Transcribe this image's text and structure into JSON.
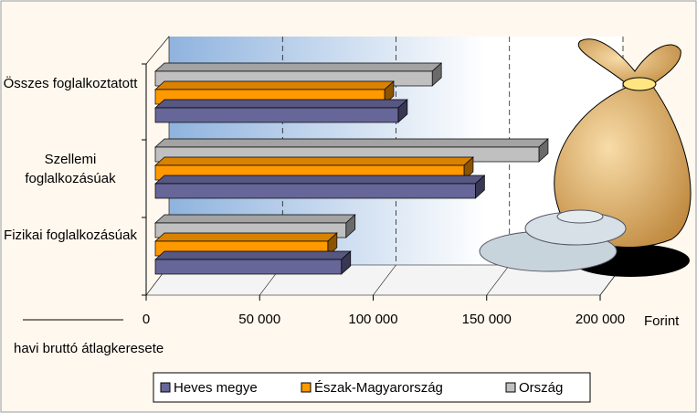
{
  "chart_data": {
    "type": "bar3d_horizontal",
    "categories": [
      "Összes foglalkoztatott",
      "Szellemi foglalkozásúak",
      "Fizikai foglalkozásúak"
    ],
    "series": [
      {
        "name": "Heves megye",
        "color": "#666699",
        "values": [
          107000,
          141000,
          82000
        ]
      },
      {
        "name": "Észak-Magyarország",
        "color": "#ff9900",
        "values": [
          101000,
          136000,
          76000
        ]
      },
      {
        "name": "Ország",
        "color": "#c0c0c0",
        "values": [
          122000,
          169000,
          84000
        ]
      }
    ],
    "xlim": [
      0,
      200000
    ],
    "xticks": [
      0,
      {
        "value": 50000,
        "label": "50 000"
      },
      {
        "value": 100000,
        "label": "100 000"
      },
      {
        "value": 150000,
        "label": "150 000"
      },
      {
        "value": 200000,
        "label": "200 000"
      }
    ],
    "x_unit": "Forint",
    "x_label": "havi bruttó átlagkeresete",
    "grid": true
  }
}
